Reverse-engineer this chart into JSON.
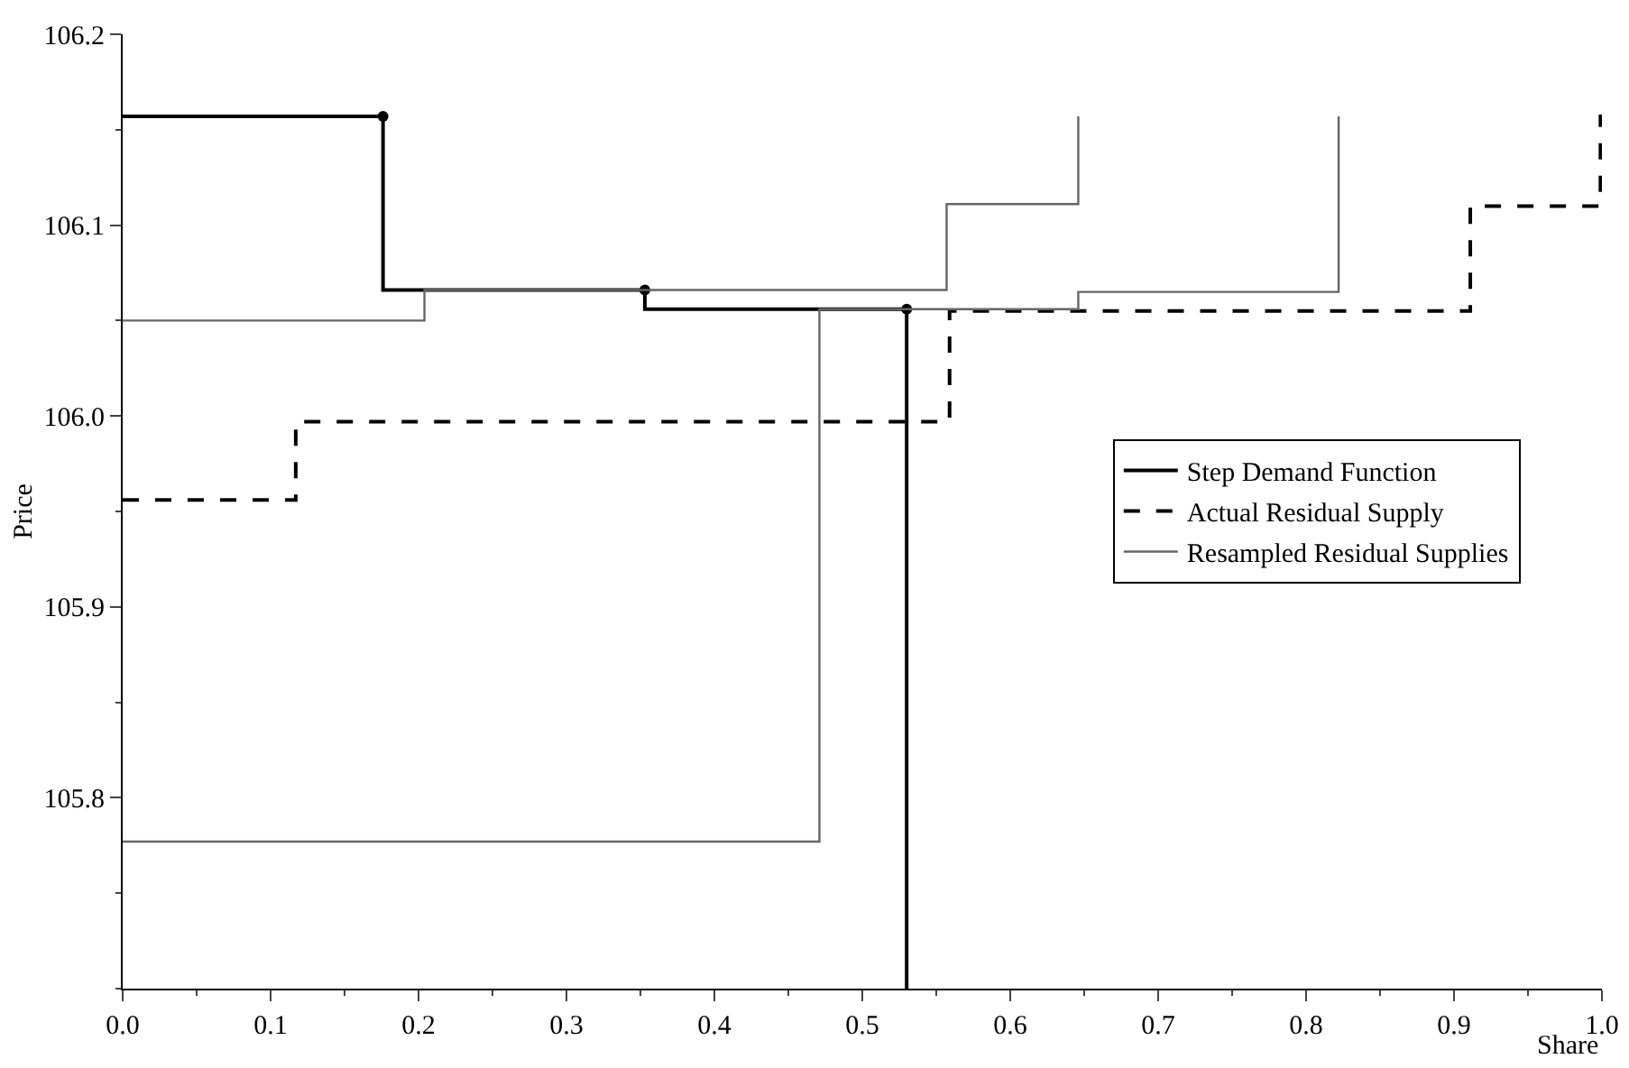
{
  "chart_data": {
    "type": "step",
    "xlabel": "Share",
    "ylabel": "Price",
    "xlim": [
      0,
      1
    ],
    "ylim": [
      105.7,
      106.2
    ],
    "xticks": [
      {
        "value": 0,
        "label": "0.0"
      },
      0.1,
      0.2,
      0.3,
      0.4,
      0.5,
      0.6,
      0.7,
      0.8,
      0.9,
      {
        "value": 1,
        "label": "1.0"
      }
    ],
    "yticks": [
      {
        "value": 105.8,
        "label": "105.8"
      },
      {
        "value": 105.9,
        "label": "105.9"
      },
      {
        "value": 106,
        "label": "106.0"
      },
      {
        "value": 106.1,
        "label": "106.1"
      },
      {
        "value": 106.2,
        "label": "106.2"
      }
    ],
    "grid": false,
    "legend": "right",
    "series": [
      {
        "name": "Step Demand Function",
        "color": "#000000",
        "line_style": "solid",
        "x": [
          0,
          0.176,
          0.353,
          0.53
        ],
        "values": [
          106.157,
          106.066,
          106.056,
          105.7
        ]
      },
      {
        "type": "scatter",
        "color": "#000000",
        "marker": "circle",
        "x": [
          0.176,
          0.353,
          0.53
        ],
        "values": [
          106.157,
          106.066,
          106.056
        ]
      },
      {
        "name": "Actual Residual Supply",
        "color": "#000000",
        "line_style": "dashed",
        "x": [
          0,
          0.117,
          0.559,
          0.911,
          0.999
        ],
        "values": [
          105.956,
          105.997,
          106.055,
          106.11,
          106.158
        ]
      },
      {
        "name": "Resampled Residual Supplies",
        "color": "#666666",
        "line_style": "solid",
        "x": [
          0,
          0.204,
          0.557,
          0.646
        ],
        "values": [
          106.05,
          106.066,
          106.111,
          106.157
        ]
      },
      {
        "color": "#666666",
        "line_style": "solid",
        "x": [
          0,
          0.471,
          0.646,
          0.822
        ],
        "values": [
          105.777,
          106.056,
          106.065,
          106.157
        ]
      }
    ]
  }
}
